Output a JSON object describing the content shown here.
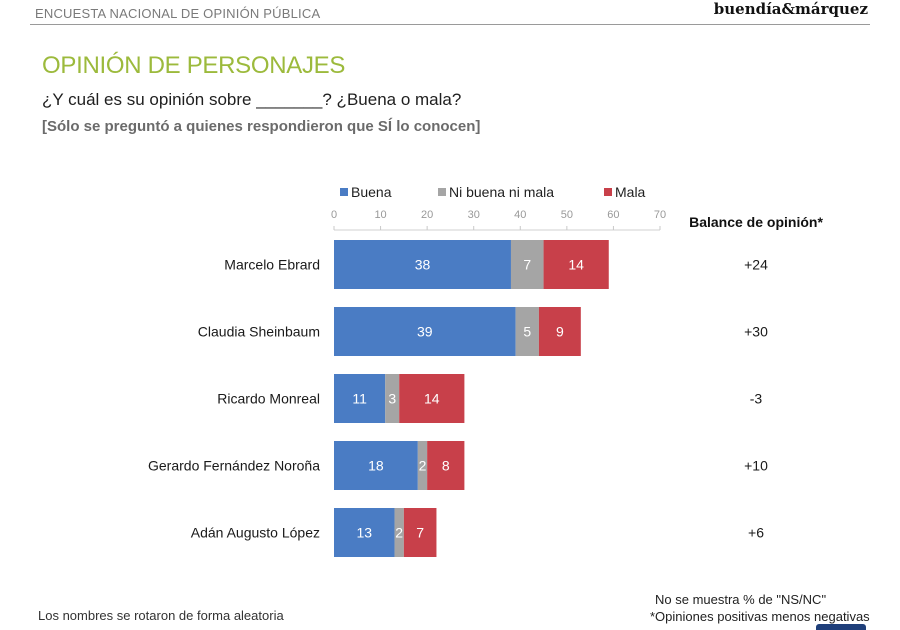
{
  "header": {
    "survey_name": "ENCUESTA NACIONAL DE OPINIÓN PÚBLICA",
    "brand": "buendía&márquez"
  },
  "title": "OPINIÓN DE PERSONAJES",
  "question": "¿Y cuál es su opinión sobre _______? ¿Buena o mala?",
  "note": "[Sólo se preguntó a quienes respondieron que SÍ lo conocen]",
  "chart_data": {
    "type": "bar",
    "orientation": "horizontal",
    "stacked": true,
    "categories": [
      "Marcelo Ebrard",
      "Claudia Sheinbaum",
      "Ricardo Monreal",
      "Gerardo Fernández Noroña",
      "Adán Augusto López"
    ],
    "series": [
      {
        "name": "Buena",
        "color": "#4a7cc4",
        "values": [
          38,
          39,
          11,
          18,
          13
        ]
      },
      {
        "name": "Ni buena ni mala",
        "color": "#a5a5a5",
        "values": [
          7,
          5,
          3,
          2,
          2
        ]
      },
      {
        "name": "Mala",
        "color": "#c8404a",
        "values": [
          14,
          9,
          14,
          8,
          7
        ]
      }
    ],
    "xlim": [
      0,
      70
    ],
    "ticks": [
      0,
      10,
      20,
      30,
      40,
      50,
      60,
      70
    ],
    "legend_position": "top",
    "balance_title": "Balance de opinión*",
    "balance": [
      "+24",
      "+30",
      "-3",
      "+10",
      "+6"
    ]
  },
  "footer": {
    "left": "Los nombres se rotaron de forma aleatoria",
    "right_line1": "No se muestra % de \"NS/NC\"",
    "right_line2": "*Opiniones positivas menos negativas"
  }
}
